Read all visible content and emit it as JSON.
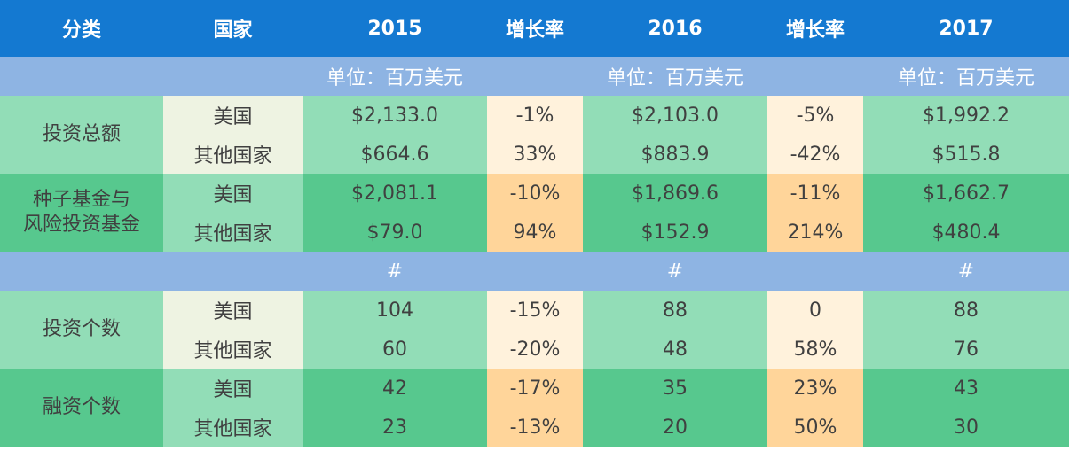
{
  "header": {
    "category": "分类",
    "country": "国家",
    "y2015": "2015",
    "growth1": "增长率",
    "y2016": "2016",
    "growth2": "增长率",
    "y2017": "2017"
  },
  "unit_row_1": {
    "y2015": "单位：百万美元",
    "y2016": "单位：百万美元",
    "y2017": "单位：百万美元"
  },
  "unit_row_2": {
    "y2015": "#",
    "y2016": "#",
    "y2017": "#"
  },
  "groups": [
    {
      "label": "投资总额",
      "rows": [
        {
          "country": "美国",
          "v2015": "$2,133.0",
          "g1": "-1%",
          "v2016": "$2,103.0",
          "g2": "-5%",
          "v2017": "$1,992.2"
        },
        {
          "country": "其他国家",
          "v2015": "$664.6",
          "g1": "33%",
          "v2016": "$883.9",
          "g2": "-42%",
          "v2017": "$515.8"
        }
      ]
    },
    {
      "label": "种子基金与\n风险投资基金",
      "label_line1": "种子基金与",
      "label_line2": "风险投资基金",
      "rows": [
        {
          "country": "美国",
          "v2015": "$2,081.1",
          "g1": "-10%",
          "v2016": "$1,869.6",
          "g2": "-11%",
          "v2017": "$1,662.7"
        },
        {
          "country": "其他国家",
          "v2015": "$79.0",
          "g1": "94%",
          "v2016": "$152.9",
          "g2": "214%",
          "v2017": "$480.4"
        }
      ]
    },
    {
      "label": "投资个数",
      "rows": [
        {
          "country": "美国",
          "v2015": "104",
          "g1": "-15%",
          "v2016": "88",
          "g2": "0",
          "v2017": "88"
        },
        {
          "country": "其他国家",
          "v2015": "60",
          "g1": "-20%",
          "v2016": "48",
          "g2": "58%",
          "v2017": "76"
        }
      ]
    },
    {
      "label": "融资个数",
      "rows": [
        {
          "country": "美国",
          "v2015": "42",
          "g1": "-17%",
          "v2016": "35",
          "g2": "23%",
          "v2017": "43"
        },
        {
          "country": "其他国家",
          "v2015": "23",
          "g1": "-13%",
          "v2016": "20",
          "g2": "50%",
          "v2017": "30"
        }
      ]
    }
  ],
  "colors": {
    "header_bg": "#1479d1",
    "unit_bg": "#8eb4e3",
    "light_green": "#92ddb7",
    "dark_green": "#57c88e",
    "light_peach": "#fff2dc",
    "dark_peach": "#ffd59a",
    "cream": "#eef3e2"
  }
}
